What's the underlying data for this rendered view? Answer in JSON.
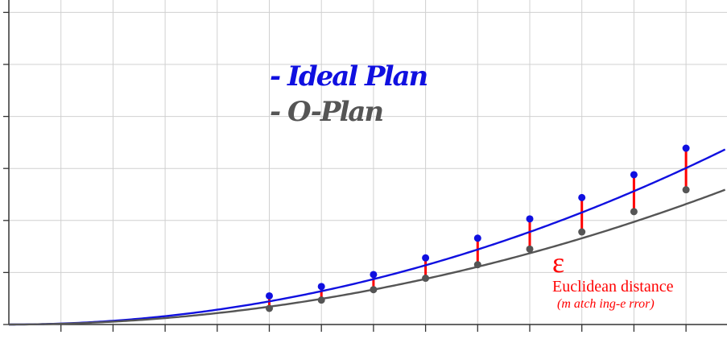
{
  "chart_data": {
    "type": "line",
    "title": "",
    "xlabel": "",
    "ylabel": "",
    "xlim": [
      0,
      13.75
    ],
    "ylim": [
      0,
      6.1
    ],
    "grid": true,
    "legend_position": "top-center",
    "series": [
      {
        "name": "- Ideal Plan",
        "color": "#1010e0",
        "curve": {
          "type": "quadratic",
          "a": 0.0178,
          "y0": 0.0
        },
        "points_x": [
          5,
          6,
          7,
          8,
          9,
          10,
          11,
          12,
          13
        ],
        "points_y": [
          0.55,
          0.73,
          0.96,
          1.28,
          1.66,
          2.03,
          2.44,
          2.88,
          3.39
        ]
      },
      {
        "name": "- O-Plan",
        "color": "#555555",
        "curve": {
          "type": "quadratic",
          "a": 0.0137,
          "y0": 0.0
        },
        "points_x": [
          5,
          6,
          7,
          8,
          9,
          10,
          11,
          12,
          13
        ],
        "points_y": [
          0.31,
          0.47,
          0.67,
          0.89,
          1.15,
          1.45,
          1.78,
          2.17,
          2.59
        ]
      }
    ],
    "error_color": "#ff0000",
    "annotation": {
      "symbol": "ε",
      "line1": "Euclidean distance",
      "line2": "(m atch ing-e rror)"
    }
  }
}
